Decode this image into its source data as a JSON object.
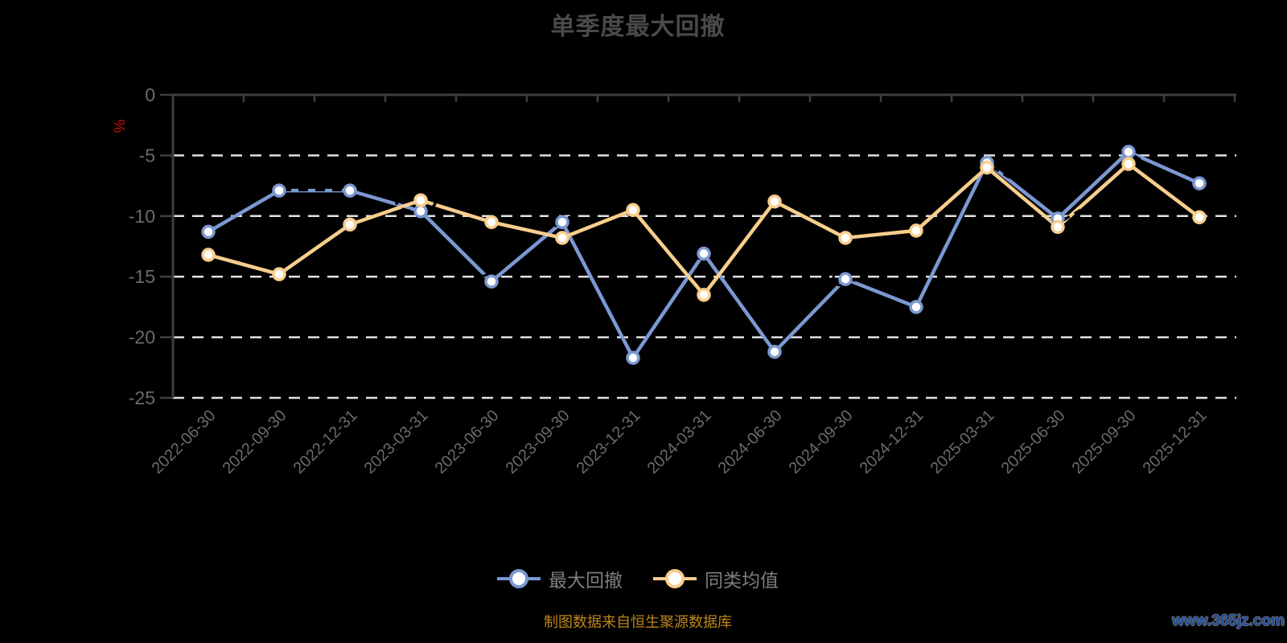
{
  "chart_data": {
    "type": "line",
    "title": "单季度最大回撤",
    "ylabel": "%",
    "ylim": [
      -25,
      0
    ],
    "yticks": [
      0,
      -5,
      -10,
      -15,
      -20,
      -25
    ],
    "grid": "horizontal-dashed",
    "legend_position": "bottom-center",
    "categories": [
      "2022-06-30",
      "2022-09-30",
      "2022-12-31",
      "2023-03-31",
      "2023-06-30",
      "2023-09-30",
      "2023-12-31",
      "2024-03-31",
      "2024-06-30",
      "2024-09-30",
      "2024-12-31",
      "2025-03-31",
      "2025-06-30",
      "2025-09-30",
      "2025-12-31"
    ],
    "series": [
      {
        "name": "最大回撤",
        "color": "#7b98d2",
        "values": [
          -11.3,
          -7.9,
          -7.9,
          -9.6,
          -15.4,
          -10.5,
          -21.7,
          -13.1,
          -21.2,
          -15.2,
          -17.5,
          -5.6,
          -10.2,
          -4.7,
          -7.3
        ]
      },
      {
        "name": "同类均值",
        "color": "#f8ce8d",
        "values": [
          -13.2,
          -14.8,
          -10.7,
          -8.7,
          -10.5,
          -11.8,
          -9.5,
          -16.5,
          -8.8,
          -11.8,
          -11.2,
          -6.0,
          -10.9,
          -5.7,
          -10.1
        ]
      }
    ]
  },
  "footer": {
    "caption": "制图数据来自恒生聚源数据库",
    "watermark": "www.365jz.com"
  },
  "colors": {
    "background": "#000000",
    "title": "#4a4a4a",
    "axis": "#3e3e3e",
    "gridline": "#e2e2e2",
    "tick_label": "#6a6a6a",
    "legend_text": "#7d7d7d",
    "caption": "#be861b",
    "watermark": "#1e4da0",
    "unit_label": "#c01212",
    "marker_fill": "#ffffff"
  }
}
